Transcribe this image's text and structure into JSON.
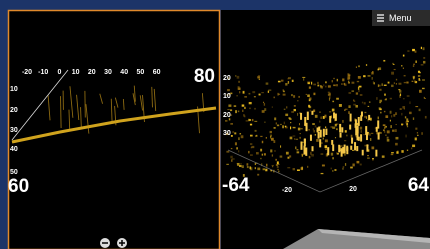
{
  "menu": "Menu",
  "left_panel": {
    "top_scale": [
      "-20",
      "-10",
      "0",
      "10",
      "20",
      "30",
      "40",
      "50",
      "60"
    ],
    "top_range": "80",
    "depth_scale": [
      "10",
      "20",
      "30",
      "40",
      "50"
    ],
    "bottom_range": "60"
  },
  "right_panel": {
    "depth_scale": [
      "20",
      "10",
      "20",
      "30"
    ],
    "left_range": "-64",
    "right_range": "64",
    "bottom_scale": [
      "-20",
      "20"
    ]
  }
}
